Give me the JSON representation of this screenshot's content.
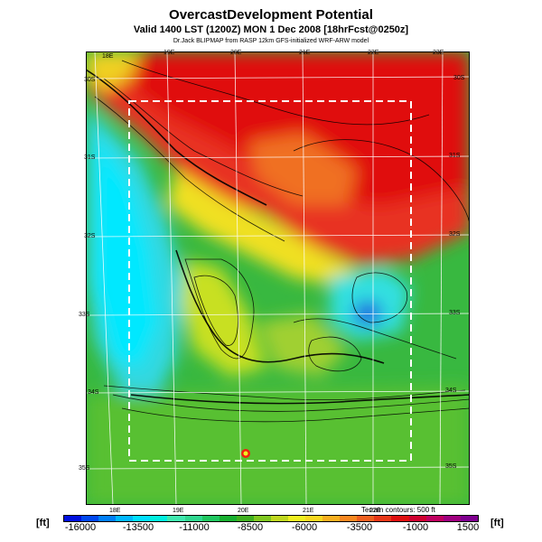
{
  "header": {
    "title": "OvercastDevelopment Potential",
    "subtitle": "Valid 1400 LST (1200Z) MON 1 Dec 2008 [18hrFcst@0250z]",
    "credit": "Dr.Jack BLIPMAP from RASP 12km GFS-initialized WRF-ARW model"
  },
  "map": {
    "lon_top": [
      "18E",
      "19E",
      "20E",
      "21E",
      "22E",
      "23E"
    ],
    "lon_bottom": [
      "18E",
      "19E",
      "20E",
      "21E",
      "22E"
    ],
    "lat_left": [
      "30S",
      "31S",
      "32S",
      "33S",
      "34S",
      "35S"
    ],
    "lat_right": [
      "30S",
      "31S",
      "32S",
      "33S",
      "34S",
      "35S"
    ]
  },
  "legend": {
    "unit_left": "[ft]",
    "unit_right": "[ft]",
    "terrain_note": "Terrain contours: 500 ft",
    "ticks": [
      "-16000",
      "-13500",
      "-11000",
      "-8500",
      "-6000",
      "-3500",
      "-1000",
      "1500"
    ],
    "colors": [
      "#0010e0",
      "#0048f0",
      "#0080f8",
      "#00b8ff",
      "#00e0ff",
      "#00f0e0",
      "#40e8b0",
      "#30d890",
      "#20c860",
      "#18b030",
      "#40b020",
      "#80c820",
      "#c0d820",
      "#f0f020",
      "#f8d820",
      "#f8b020",
      "#f88820",
      "#f06020",
      "#e83818",
      "#e01010",
      "#d00030",
      "#c00060",
      "#a00080",
      "#800090"
    ]
  }
}
